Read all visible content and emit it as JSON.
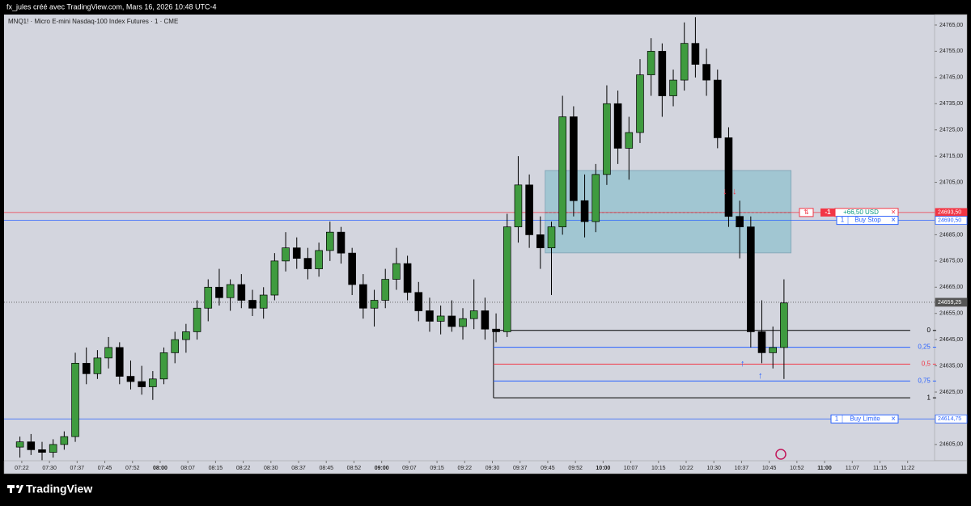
{
  "header": {
    "text": "fx_jules créé avec TradingView.com, Mars 16, 2026 10:48 UTC-4"
  },
  "footer": {
    "logo": "TradingView"
  },
  "chart_data": {
    "type": "candlestick",
    "title": "MNQ1! · Micro E-mini Nasdaq-100 Index Futures · 1 · CME",
    "x": [
      442,
      445,
      448,
      451,
      454,
      457,
      460,
      463,
      466,
      469,
      472,
      475,
      478,
      481,
      484,
      487,
      490,
      493,
      496,
      499,
      502,
      505,
      508,
      511,
      514,
      517,
      520,
      523,
      526,
      529,
      532,
      535,
      538,
      541,
      544,
      547,
      550,
      553,
      556,
      559,
      562,
      565,
      568,
      571,
      574,
      577,
      580,
      583,
      586,
      589,
      592,
      595,
      598,
      601,
      604,
      607,
      610,
      613,
      616,
      619,
      622,
      625,
      628,
      631,
      634,
      637,
      640,
      643,
      646,
      649
    ],
    "open": [
      24604,
      24606,
      24603,
      24602,
      24605,
      24608,
      24636,
      24632,
      24638,
      24642,
      24631,
      24629,
      24627,
      24630,
      24640,
      24645,
      24648,
      24657,
      24665,
      24661,
      24666,
      24660,
      24657,
      24662,
      24675,
      24680,
      24676,
      24672,
      24679,
      24686,
      24678,
      24666,
      24657,
      24660,
      24668,
      24674,
      24663,
      24656,
      24652,
      24654,
      24650,
      24653,
      24656,
      24649,
      24648,
      24688,
      24704,
      24685,
      24680,
      24688,
      24730,
      24698,
      24690,
      24708,
      24735,
      24718,
      24724,
      24746,
      24755,
      24738,
      24744,
      24758,
      24750,
      24744,
      24722,
      24692,
      24688,
      24648,
      24640,
      24642
    ],
    "high": [
      24608,
      24609,
      24606,
      24607,
      24610,
      24640,
      24642,
      24641,
      24646,
      24644,
      24637,
      24635,
      24633,
      24642,
      24648,
      24651,
      24660,
      24668,
      24672,
      24668,
      24670,
      24664,
      24665,
      24678,
      24686,
      24684,
      24680,
      24682,
      24690,
      24688,
      24680,
      24670,
      24664,
      24672,
      24680,
      24677,
      24667,
      24661,
      24658,
      24660,
      24657,
      24668,
      24661,
      24655,
      24693,
      24715,
      24708,
      24692,
      24690,
      24738,
      24734,
      24708,
      24712,
      24742,
      24740,
      24730,
      24752,
      24760,
      24758,
      24748,
      24766,
      24768,
      24756,
      24748,
      24726,
      24698,
      24692,
      24660,
      24650,
      24668
    ],
    "low": [
      24600,
      24601,
      24599,
      24600,
      24603,
      24606,
      24628,
      24630,
      24634,
      24628,
      24626,
      24624,
      24622,
      24628,
      24636,
      24640,
      24645,
      24652,
      24658,
      24656,
      24657,
      24654,
      24653,
      24660,
      24671,
      24672,
      24668,
      24669,
      24675,
      24674,
      24662,
      24653,
      24650,
      24657,
      24664,
      24660,
      24652,
      24648,
      24647,
      24648,
      24645,
      24649,
      24645,
      24644,
      24646,
      24682,
      24680,
      24672,
      24662,
      24685,
      24692,
      24684,
      24686,
      24704,
      24712,
      24706,
      24720,
      24738,
      24730,
      24734,
      24740,
      24745,
      24738,
      24718,
      24688,
      24676,
      24642,
      24636,
      24634,
      24630
    ],
    "close": [
      24606,
      24603,
      24602,
      24605,
      24608,
      24636,
      24632,
      24638,
      24642,
      24631,
      24629,
      24627,
      24630,
      24640,
      24645,
      24648,
      24657,
      24665,
      24661,
      24666,
      24660,
      24657,
      24662,
      24675,
      24680,
      24676,
      24672,
      24679,
      24686,
      24678,
      24666,
      24657,
      24660,
      24668,
      24674,
      24663,
      24656,
      24652,
      24654,
      24650,
      24653,
      24656,
      24649,
      24648,
      24688,
      24704,
      24685,
      24680,
      24688,
      24730,
      24698,
      24690,
      24708,
      24735,
      24718,
      24724,
      24746,
      24755,
      24738,
      24744,
      24758,
      24750,
      24744,
      24722,
      24692,
      24688,
      24648,
      24640,
      24642,
      24659
    ],
    "up_color": "#3f9b3f",
    "down_color": "#000000",
    "xlim": [
      437.7,
      689.8
    ],
    "ylim": [
      24598.8,
      24769
    ],
    "xticks": [
      {
        "value": 442.5,
        "label": "07:22"
      },
      {
        "value": 450,
        "label": "07:30"
      },
      {
        "value": 457.5,
        "label": "07:37"
      },
      {
        "value": 465,
        "label": "07:45"
      },
      {
        "value": 472.5,
        "label": "07:52"
      },
      {
        "value": 480,
        "label": "08:00"
      },
      {
        "value": 487.5,
        "label": "08:07"
      },
      {
        "value": 495,
        "label": "08:15"
      },
      {
        "value": 502.5,
        "label": "08:22"
      },
      {
        "value": 510,
        "label": "08:30"
      },
      {
        "value": 517.5,
        "label": "08:37"
      },
      {
        "value": 525,
        "label": "08:45"
      },
      {
        "value": 532.5,
        "label": "08:52"
      },
      {
        "value": 540,
        "label": "09:00"
      },
      {
        "value": 547.5,
        "label": "09:07"
      },
      {
        "value": 555,
        "label": "09:15"
      },
      {
        "value": 562.5,
        "label": "09:22"
      },
      {
        "value": 570,
        "label": "09:30"
      },
      {
        "value": 577.5,
        "label": "09:37"
      },
      {
        "value": 585,
        "label": "09:45"
      },
      {
        "value": 592.5,
        "label": "09:52"
      },
      {
        "value": 600,
        "label": "10:00"
      },
      {
        "value": 607.5,
        "label": "10:07"
      },
      {
        "value": 615,
        "label": "10:15"
      },
      {
        "value": 622.5,
        "label": "10:22"
      },
      {
        "value": 630,
        "label": "10:30"
      },
      {
        "value": 637.5,
        "label": "10:37"
      },
      {
        "value": 645,
        "label": "10:45"
      },
      {
        "value": 652.5,
        "label": "10:52"
      },
      {
        "value": 660,
        "label": "11:00"
      },
      {
        "value": 667.5,
        "label": "11:07"
      },
      {
        "value": 675,
        "label": "11:15"
      },
      {
        "value": 682.5,
        "label": "11:22"
      }
    ],
    "yticks": [
      {
        "value": 24765,
        "label": "24765,00"
      },
      {
        "value": 24755,
        "label": "24755,00"
      },
      {
        "value": 24745,
        "label": "24745,00"
      },
      {
        "value": 24735,
        "label": "24735,00"
      },
      {
        "value": 24725,
        "label": "24725,00"
      },
      {
        "value": 24715,
        "label": "24715,00"
      },
      {
        "value": 24705,
        "label": "24705,00"
      },
      {
        "value": 24685,
        "label": "24685,00"
      },
      {
        "value": 24675,
        "label": "24675,00"
      },
      {
        "value": 24665,
        "label": "24665,00"
      },
      {
        "value": 24655,
        "label": "24655,00"
      },
      {
        "value": 24645,
        "label": "24645,00"
      },
      {
        "value": 24635,
        "label": "24635,00"
      },
      {
        "value": 24625,
        "label": "24625,00"
      },
      {
        "value": 24605,
        "label": "24605,00"
      }
    ],
    "price_lines": [
      {
        "value": 24693.5,
        "label": "24693,50",
        "color": "#f23645",
        "order": {
          "icon": "⇅",
          "qty": -1,
          "pnl": "+66,50 USD",
          "close": "×"
        }
      },
      {
        "value": 24690.5,
        "label": "24690,50",
        "color": "#2962ff",
        "order": {
          "qty": 1,
          "text": "Buy Stop",
          "close": "×"
        }
      },
      {
        "value": 24659.25,
        "label": "24659,25",
        "color": "#555555",
        "style": "dotted"
      },
      {
        "value": 24614.75,
        "label": "24614,75",
        "color": "#2962ff",
        "order": {
          "qty": 1,
          "text": "Buy Limite",
          "close": "×"
        }
      }
    ],
    "box": {
      "x": [
        584.3,
        650.9
      ],
      "y": [
        24678.1,
        24709.5
      ],
      "mid": 24693.5
    },
    "fib": {
      "x": [
        570.3,
        683.2
      ],
      "levels": [
        {
          "value": 24648.5,
          "label": "0",
          "color": "#000000"
        },
        {
          "value": 24642.1,
          "label": "0,25",
          "color": "#2962ff"
        },
        {
          "value": 24635.65,
          "label": "0,5",
          "color": "#f23645"
        },
        {
          "value": 24629.2,
          "label": "0,75",
          "color": "#2962ff"
        },
        {
          "value": 24622.8,
          "label": "1",
          "color": "#000000"
        }
      ]
    },
    "markers": [
      {
        "x": 633,
        "y": 24701.5,
        "text": "↓",
        "color": "#f23645"
      },
      {
        "x": 635.6,
        "y": 24701.5,
        "text": "↓",
        "color": "#f23645"
      },
      {
        "x": 637.8,
        "y": 24635.8,
        "text": "↑",
        "color": "#2962ff"
      },
      {
        "x": 642.6,
        "y": 24631.2,
        "text": "↑",
        "color": "#2962ff"
      }
    ]
  }
}
